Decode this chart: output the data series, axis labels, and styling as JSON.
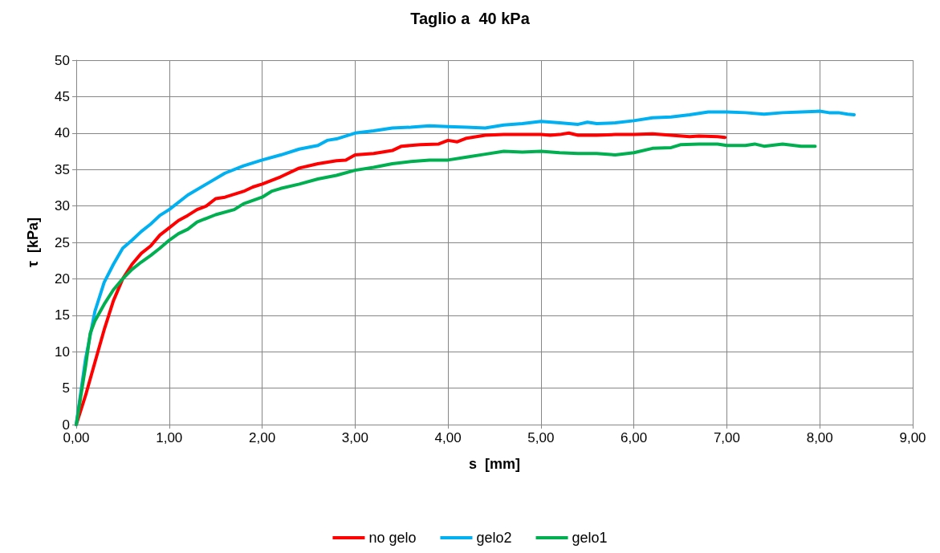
{
  "chart_data": {
    "type": "line",
    "title": "Taglio a  40 kPa",
    "xlabel": "s  [mm]",
    "ylabel": "τ  [kPa]",
    "xlim": [
      0,
      9
    ],
    "xticks": [
      {
        "value": 0,
        "label": "0,00"
      },
      {
        "value": 1,
        "label": "1,00"
      },
      {
        "value": 2,
        "label": "2,00"
      },
      {
        "value": 3,
        "label": "3,00"
      },
      {
        "value": 4,
        "label": "4,00"
      },
      {
        "value": 5,
        "label": "5,00"
      },
      {
        "value": 6,
        "label": "6,00"
      },
      {
        "value": 7,
        "label": "7,00"
      },
      {
        "value": 8,
        "label": "8,00"
      },
      {
        "value": 9,
        "label": "9,00"
      }
    ],
    "ylim": [
      0,
      50
    ],
    "yticks": [
      0,
      5,
      10,
      15,
      20,
      25,
      30,
      35,
      40,
      45,
      50
    ],
    "grid": true,
    "legend": "bottom",
    "marker": "none",
    "line_style": "solid",
    "series": [
      {
        "name": "no gelo",
        "color": "#ff0000",
        "x": [
          0,
          0.1,
          0.2,
          0.3,
          0.4,
          0.5,
          0.6,
          0.7,
          0.8,
          0.9,
          1.0,
          1.1,
          1.2,
          1.3,
          1.4,
          1.5,
          1.6,
          1.8,
          1.9,
          2.0,
          2.2,
          2.4,
          2.6,
          2.8,
          2.9,
          3.0,
          3.2,
          3.4,
          3.5,
          3.7,
          3.9,
          4.0,
          4.1,
          4.2,
          4.4,
          4.6,
          4.8,
          5.0,
          5.1,
          5.2,
          5.3,
          5.4,
          5.6,
          5.8,
          6.0,
          6.2,
          6.4,
          6.6,
          6.7,
          6.9,
          6.98
        ],
        "values": [
          0,
          4,
          8.5,
          13,
          17,
          20,
          22,
          23.5,
          24.5,
          26,
          27,
          28,
          28.7,
          29.5,
          30,
          31,
          31.2,
          32,
          32.6,
          33,
          34,
          35.2,
          35.8,
          36.2,
          36.3,
          37,
          37.2,
          37.6,
          38.2,
          38.4,
          38.5,
          39,
          38.8,
          39.3,
          39.7,
          39.8,
          39.8,
          39.8,
          39.7,
          39.8,
          40,
          39.7,
          39.7,
          39.8,
          39.8,
          39.9,
          39.7,
          39.5,
          39.6,
          39.5,
          39.4
        ]
      },
      {
        "name": "gelo2",
        "color": "#00b0f0",
        "x": [
          0,
          0.1,
          0.2,
          0.3,
          0.4,
          0.5,
          0.6,
          0.7,
          0.8,
          0.9,
          1.0,
          1.2,
          1.4,
          1.6,
          1.8,
          2.0,
          2.2,
          2.4,
          2.6,
          2.7,
          2.8,
          3.0,
          3.2,
          3.4,
          3.6,
          3.8,
          4.0,
          4.2,
          4.4,
          4.6,
          4.8,
          5.0,
          5.2,
          5.4,
          5.5,
          5.6,
          5.8,
          6.0,
          6.2,
          6.4,
          6.6,
          6.8,
          7.0,
          7.2,
          7.4,
          7.6,
          7.8,
          8.0,
          8.1,
          8.2,
          8.3,
          8.37
        ],
        "values": [
          0,
          9,
          15.5,
          19.5,
          22,
          24.2,
          25.3,
          26.5,
          27.5,
          28.7,
          29.5,
          31.5,
          33,
          34.5,
          35.5,
          36.3,
          37,
          37.8,
          38.3,
          39,
          39.2,
          40,
          40.3,
          40.7,
          40.8,
          41,
          40.9,
          40.8,
          40.7,
          41.1,
          41.3,
          41.6,
          41.4,
          41.2,
          41.5,
          41.3,
          41.4,
          41.7,
          42.1,
          42.2,
          42.5,
          42.9,
          42.9,
          42.8,
          42.6,
          42.8,
          42.9,
          43,
          42.8,
          42.8,
          42.6,
          42.5
        ]
      },
      {
        "name": "gelo1",
        "color": "#00b050",
        "x": [
          0,
          0.1,
          0.15,
          0.2,
          0.3,
          0.4,
          0.5,
          0.6,
          0.7,
          0.8,
          0.9,
          1.0,
          1.1,
          1.2,
          1.3,
          1.4,
          1.5,
          1.7,
          1.8,
          2.0,
          2.1,
          2.2,
          2.4,
          2.6,
          2.8,
          3.0,
          3.2,
          3.4,
          3.6,
          3.8,
          4.0,
          4.2,
          4.4,
          4.6,
          4.8,
          5.0,
          5.2,
          5.4,
          5.6,
          5.8,
          6.0,
          6.2,
          6.4,
          6.5,
          6.7,
          6.9,
          7.0,
          7.2,
          7.3,
          7.4,
          7.6,
          7.8,
          7.95
        ],
        "values": [
          0,
          8,
          12.5,
          14.2,
          16.5,
          18.5,
          20,
          21.3,
          22.3,
          23.2,
          24.2,
          25.3,
          26.2,
          26.8,
          27.8,
          28.3,
          28.8,
          29.5,
          30.3,
          31.2,
          32,
          32.4,
          33,
          33.7,
          34.2,
          34.9,
          35.3,
          35.8,
          36.1,
          36.3,
          36.3,
          36.7,
          37.1,
          37.5,
          37.4,
          37.5,
          37.3,
          37.2,
          37.2,
          37,
          37.3,
          37.9,
          38,
          38.4,
          38.5,
          38.5,
          38.3,
          38.3,
          38.5,
          38.2,
          38.5,
          38.2,
          38.2
        ]
      }
    ]
  }
}
